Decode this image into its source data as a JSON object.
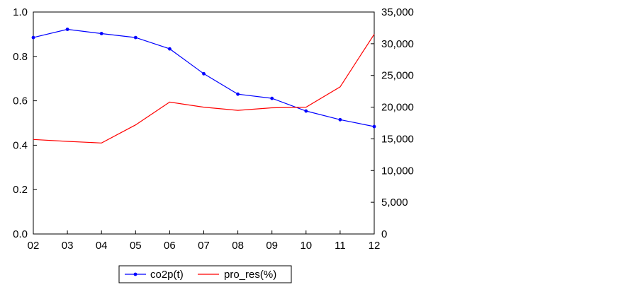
{
  "chart_data": {
    "type": "line",
    "title": "",
    "x": [
      "02",
      "03",
      "04",
      "05",
      "06",
      "07",
      "08",
      "09",
      "10",
      "11",
      "12"
    ],
    "y_left": {
      "range": [
        0.0,
        1.0
      ],
      "ticks": [
        "0.0",
        "0.2",
        "0.4",
        "0.6",
        "0.8",
        "1.0"
      ],
      "tick_values": [
        0.0,
        0.2,
        0.4,
        0.6,
        0.8,
        1.0
      ]
    },
    "y_right": {
      "range": [
        0,
        35000
      ],
      "ticks": [
        "0",
        "5,000",
        "10,000",
        "15,000",
        "20,000",
        "25,000",
        "30,000",
        "35,000"
      ],
      "tick_values": [
        0,
        5000,
        10000,
        15000,
        20000,
        25000,
        30000,
        35000
      ]
    },
    "series": [
      {
        "name": "co2p(t)",
        "axis": "left",
        "color": "#0000ff",
        "markers": true,
        "values": [
          0.885,
          0.922,
          0.903,
          0.885,
          0.834,
          0.722,
          0.63,
          0.611,
          0.554,
          0.515,
          0.484
        ]
      },
      {
        "name": "pro_res(%)",
        "axis": "right",
        "color": "#ff0000",
        "markers": false,
        "values": [
          14900,
          14600,
          14350,
          17200,
          20800,
          20000,
          19500,
          19900,
          20000,
          23200,
          31500
        ]
      }
    ],
    "grid": false,
    "legend": "bottom-center"
  }
}
